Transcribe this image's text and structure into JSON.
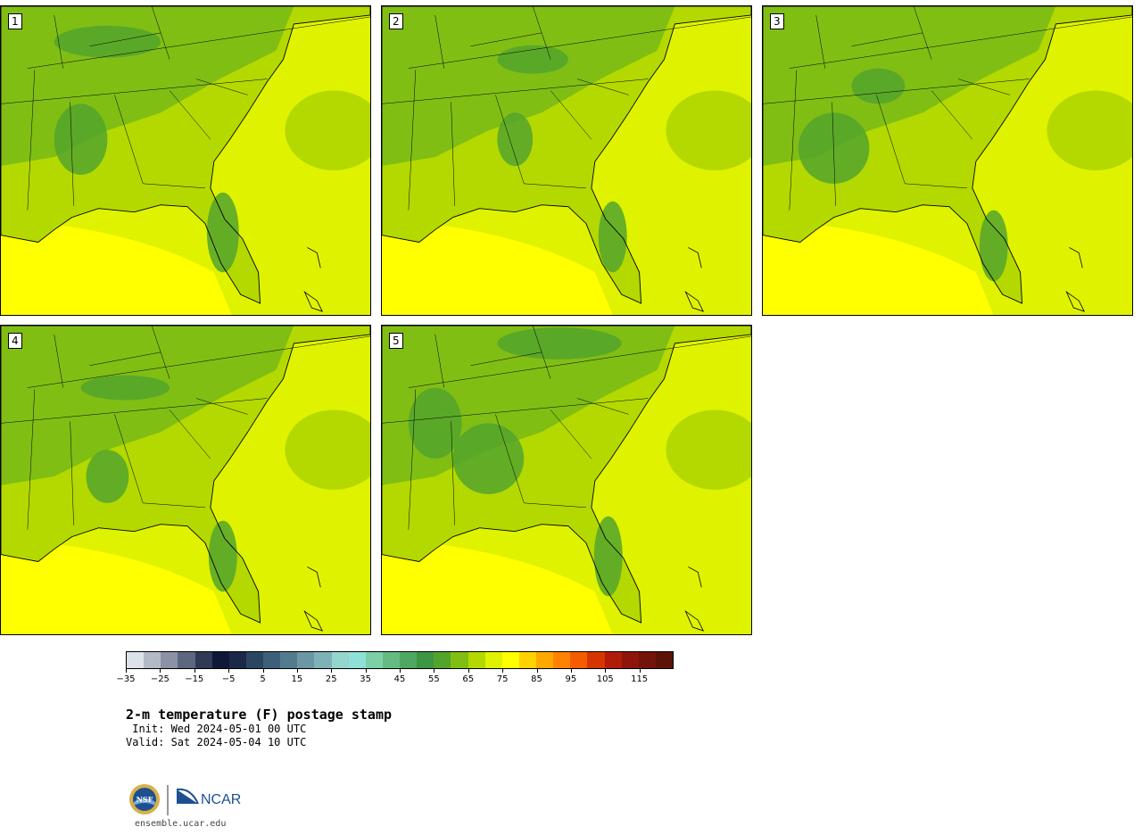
{
  "panels": [
    {
      "label": "1"
    },
    {
      "label": "2"
    },
    {
      "label": "3"
    },
    {
      "label": "4"
    },
    {
      "label": "5"
    }
  ],
  "colorbar": {
    "colors": [
      "#dde1e8",
      "#b4b9c6",
      "#8b92a5",
      "#5e6780",
      "#2f3a55",
      "#0f1836",
      "#1b2947",
      "#2c4662",
      "#3e5f78",
      "#537b8e",
      "#6a97a3",
      "#7fb2b6",
      "#94d5cc",
      "#8fe0d6",
      "#7ccfa6",
      "#66bb82",
      "#4fa862",
      "#3c9642",
      "#53a42c",
      "#80be14",
      "#b3d900",
      "#dff200",
      "#ffff00",
      "#ffd200",
      "#ffa800",
      "#ff8300",
      "#f45c00",
      "#d53600",
      "#b01c08",
      "#8f150a",
      "#741309",
      "#5c1206"
    ],
    "tick_labels": [
      "−35",
      "−25",
      "−15",
      "−5",
      "5",
      "15",
      "25",
      "35",
      "45",
      "55",
      "65",
      "75",
      "85",
      "95",
      "105",
      "115"
    ]
  },
  "title": "2-m temperature (F) postage stamp",
  "init_text": " Init: Wed 2024-05-01 00 UTC",
  "valid_text": "Valid: Sat 2024-05-04 10 UTC",
  "logo": {
    "left_text": "NSF",
    "right_text": "NCAR"
  },
  "site_url": "ensemble.ucar.edu"
}
